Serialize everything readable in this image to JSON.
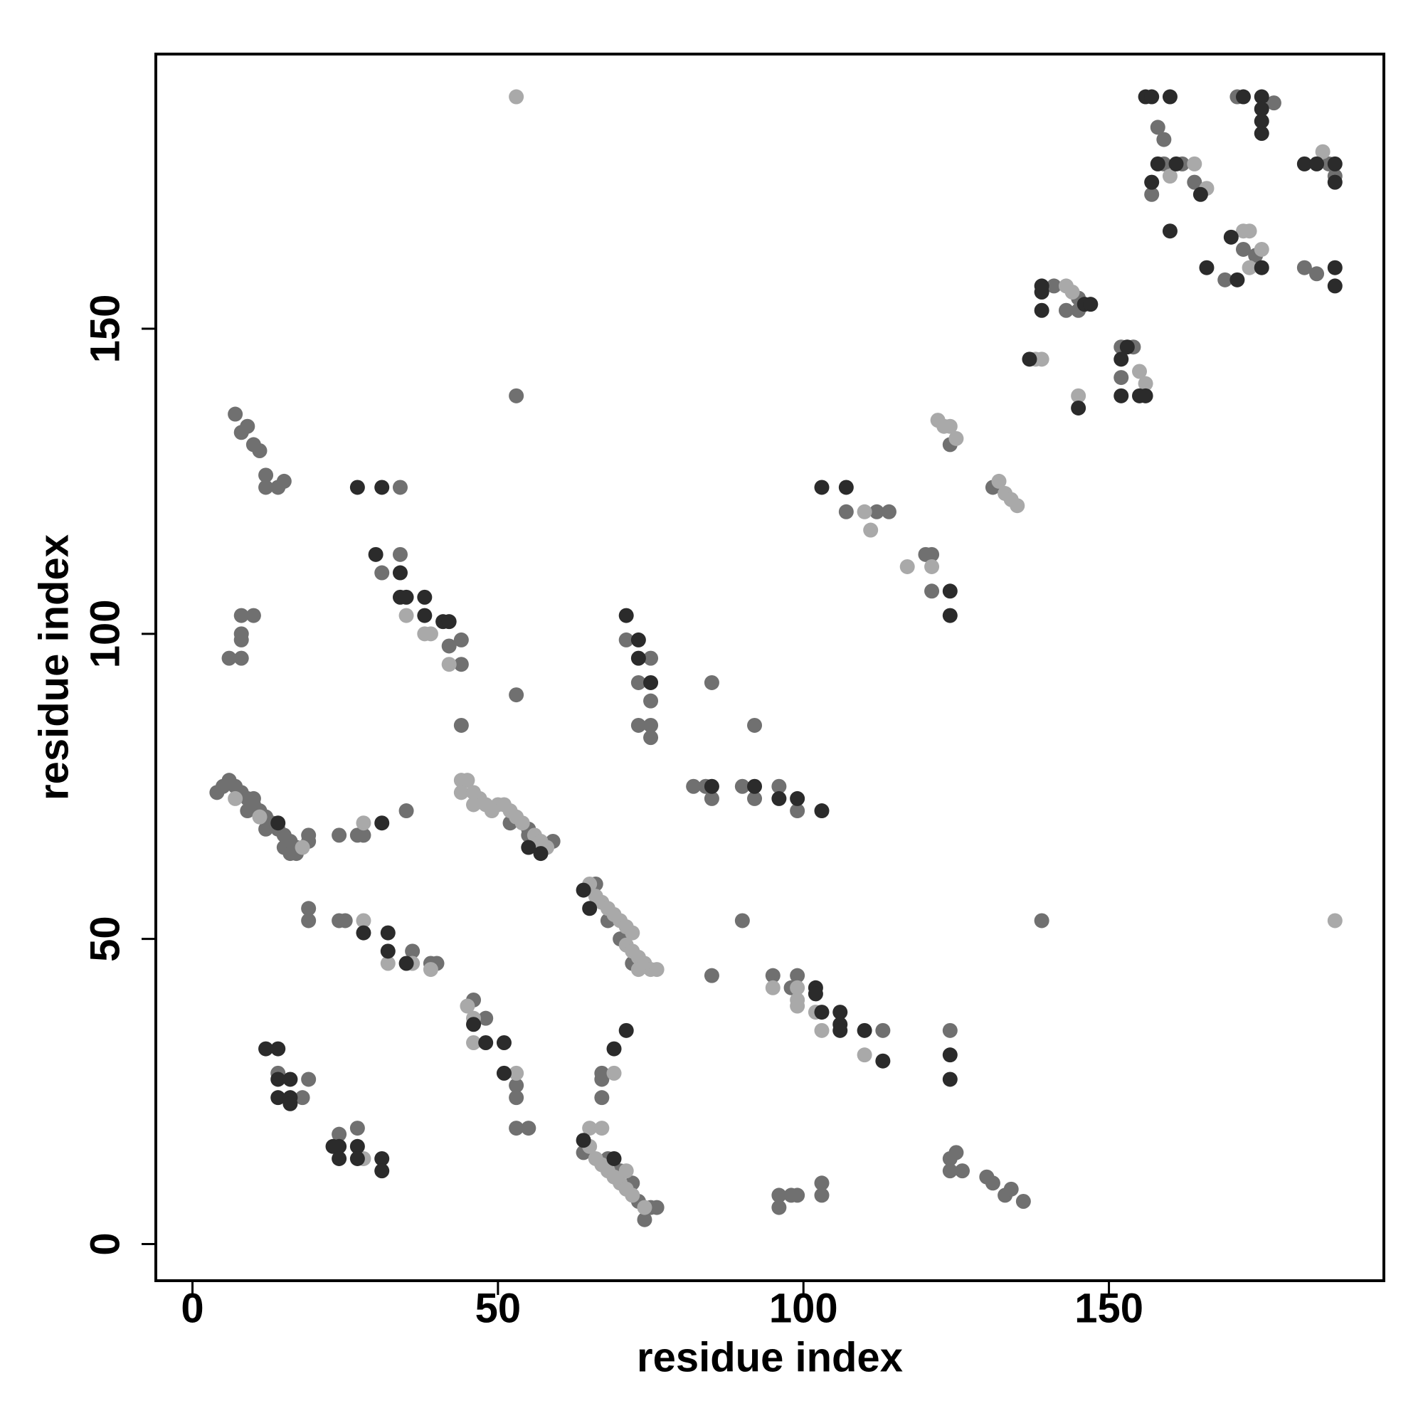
{
  "chart_data": {
    "type": "scatter",
    "x_label": "residue index",
    "y_label": "residue index",
    "xlim": [
      -6,
      195
    ],
    "ylim": [
      -6,
      195
    ],
    "xticks": [
      0,
      50,
      100,
      150
    ],
    "yticks": [
      0,
      50,
      100,
      150
    ],
    "series": [
      {
        "color": "#707070",
        "x": [
          158,
          159,
          171,
          177,
          159,
          162,
          157,
          164,
          186,
          187,
          172,
          174,
          169,
          182,
          184,
          141,
          145,
          145,
          143,
          152,
          154,
          152,
          124,
          131,
          107,
          112,
          114,
          120,
          121,
          121,
          53,
          7,
          8,
          9,
          10,
          11,
          12,
          12,
          14,
          15,
          34,
          34,
          31,
          42,
          44,
          44,
          44,
          6,
          8,
          8,
          8,
          8,
          10,
          71,
          75,
          73,
          73,
          75,
          75,
          75,
          85,
          53,
          92,
          10,
          9,
          12,
          15,
          16,
          17,
          19,
          24,
          27,
          28,
          35,
          59,
          52,
          55,
          55,
          82,
          84,
          85,
          90,
          92,
          96,
          99,
          66,
          68,
          70,
          72,
          19,
          19,
          24,
          25,
          36,
          39,
          40,
          90,
          139,
          85,
          95,
          98,
          99,
          113,
          124,
          46,
          48,
          53,
          53,
          53,
          55,
          67,
          67,
          67,
          19,
          14,
          18,
          24,
          27,
          64,
          68,
          70,
          72,
          73,
          75,
          76,
          74,
          124,
          125,
          124,
          126,
          130,
          131,
          133,
          134,
          136,
          96,
          96,
          98,
          99,
          103,
          103,
          13,
          11,
          4,
          5,
          6,
          7,
          8,
          9,
          10,
          12,
          14,
          15,
          16,
          17,
          19
        ],
        "values": [
          183,
          181,
          188,
          187,
          177,
          177,
          172,
          174,
          177,
          175,
          163,
          162,
          158,
          160,
          159,
          157,
          155,
          153,
          153,
          147,
          147,
          142,
          131,
          124,
          120,
          120,
          120,
          113,
          113,
          107,
          139,
          136,
          133,
          134,
          131,
          130,
          126,
          124,
          124,
          125,
          124,
          113,
          110,
          98,
          99,
          95,
          85,
          96,
          96,
          99,
          100,
          103,
          103,
          99,
          96,
          92,
          85,
          85,
          83,
          89,
          92,
          90,
          85,
          73,
          71,
          68,
          65,
          64,
          64,
          67,
          67,
          67,
          67,
          71,
          66,
          69,
          67,
          68,
          75,
          75,
          73,
          75,
          73,
          75,
          71,
          59,
          53,
          50,
          46,
          55,
          53,
          53,
          53,
          48,
          46,
          46,
          53,
          53,
          44,
          44,
          42,
          44,
          35,
          35,
          40,
          37,
          26,
          24,
          19,
          19,
          28,
          27,
          24,
          27,
          28,
          24,
          18,
          19,
          15,
          14,
          12,
          10,
          7,
          6,
          6,
          4,
          14,
          15,
          12,
          12,
          11,
          10,
          8,
          9,
          7,
          8,
          6,
          8,
          8,
          10,
          8,
          69,
          71,
          74,
          75,
          76,
          75,
          74,
          73,
          72,
          70,
          68,
          67,
          66,
          65,
          66
        ]
      },
      {
        "color": "#a9a9a9",
        "x": [
          53,
          164,
          160,
          166,
          172,
          173,
          173,
          175,
          185,
          143,
          144,
          138,
          139,
          145,
          155,
          156,
          122,
          123,
          124,
          125,
          132,
          133,
          134,
          135,
          110,
          111,
          117,
          121,
          35,
          38,
          39,
          42,
          7,
          28,
          44,
          45,
          44,
          46,
          47,
          48,
          50,
          51,
          52,
          53,
          54,
          56,
          57,
          58,
          46,
          49,
          65,
          66,
          67,
          68,
          69,
          70,
          71,
          72,
          71,
          72,
          73,
          74,
          75,
          76,
          73,
          28,
          32,
          36,
          39,
          187,
          95,
          99,
          99,
          99,
          102,
          103,
          110,
          45,
          46,
          46,
          53,
          69,
          28,
          65,
          65,
          66,
          67,
          68,
          69,
          70,
          71,
          72,
          74,
          71,
          67,
          18,
          11
        ],
        "values": [
          188,
          177,
          175,
          173,
          166,
          166,
          160,
          163,
          179,
          157,
          156,
          145,
          145,
          139,
          143,
          141,
          135,
          134,
          134,
          132,
          125,
          123,
          122,
          121,
          120,
          117,
          111,
          111,
          103,
          100,
          100,
          95,
          73,
          69,
          76,
          76,
          74,
          74,
          73,
          72,
          72,
          72,
          71,
          70,
          69,
          67,
          66,
          65,
          72,
          71,
          59,
          57,
          56,
          55,
          54,
          53,
          52,
          51,
          49,
          48,
          47,
          46,
          45,
          45,
          45,
          53,
          46,
          46,
          45,
          53,
          42,
          42,
          40,
          39,
          38,
          35,
          31,
          39,
          37,
          33,
          28,
          28,
          14,
          19,
          16,
          14,
          13,
          12,
          11,
          10,
          9,
          8,
          6,
          12,
          19,
          65,
          70
        ]
      },
      {
        "color": "#2b2b2b",
        "x": [
          156,
          157,
          160,
          172,
          175,
          175,
          175,
          175,
          158,
          161,
          157,
          165,
          160,
          166,
          182,
          184,
          187,
          187,
          170,
          175,
          171,
          187,
          187,
          139,
          139,
          139,
          146,
          147,
          137,
          145,
          153,
          152,
          152,
          155,
          156,
          124,
          124,
          103,
          107,
          27,
          31,
          30,
          34,
          34,
          35,
          38,
          38,
          41,
          42,
          71,
          73,
          73,
          75,
          14,
          31,
          55,
          57,
          85,
          92,
          96,
          99,
          103,
          64,
          65,
          28,
          32,
          32,
          35,
          102,
          102,
          103,
          106,
          106,
          106,
          110,
          113,
          124,
          124,
          46,
          48,
          51,
          51,
          69,
          71,
          12,
          14,
          14,
          16,
          14,
          16,
          16,
          23,
          24,
          24,
          27,
          27,
          31,
          31,
          64,
          69
        ],
        "values": [
          188,
          188,
          188,
          188,
          188,
          186,
          184,
          182,
          177,
          177,
          174,
          172,
          166,
          160,
          177,
          177,
          177,
          174,
          165,
          160,
          158,
          160,
          157,
          157,
          156,
          153,
          154,
          154,
          145,
          137,
          147,
          145,
          139,
          139,
          139,
          107,
          103,
          124,
          124,
          124,
          124,
          113,
          110,
          106,
          106,
          106,
          103,
          102,
          102,
          103,
          99,
          96,
          92,
          69,
          69,
          65,
          64,
          75,
          75,
          73,
          73,
          71,
          58,
          55,
          51,
          51,
          48,
          46,
          42,
          41,
          38,
          38,
          36,
          35,
          35,
          30,
          31,
          27,
          36,
          33,
          33,
          28,
          32,
          35,
          32,
          32,
          27,
          27,
          24,
          24,
          23,
          16,
          16,
          14,
          16,
          14,
          14,
          12,
          17,
          14
        ]
      }
    ]
  }
}
